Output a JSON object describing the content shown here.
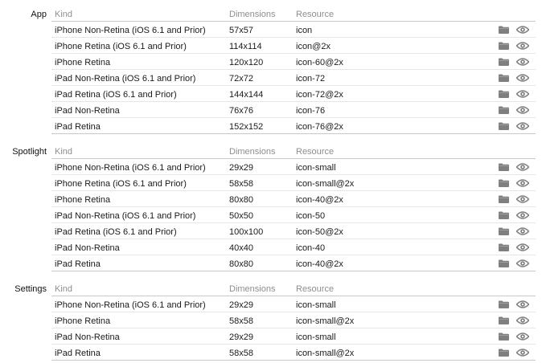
{
  "headers": {
    "kind": "Kind",
    "dimensions": "Dimensions",
    "resource": "Resource"
  },
  "icons": {
    "folder": "folder-icon",
    "eye": "eye-icon",
    "color": "#7f7f7f"
  },
  "sections": [
    {
      "label": "App",
      "rows": [
        {
          "kind": "iPhone Non-Retina (iOS 6.1 and Prior)",
          "dimensions": "57x57",
          "resource": "icon"
        },
        {
          "kind": "iPhone Retina (iOS 6.1 and Prior)",
          "dimensions": "114x114",
          "resource": "icon@2x"
        },
        {
          "kind": "iPhone Retina",
          "dimensions": "120x120",
          "resource": "icon-60@2x"
        },
        {
          "kind": "iPad Non-Retina (iOS 6.1 and Prior)",
          "dimensions": "72x72",
          "resource": "icon-72"
        },
        {
          "kind": "iPad Retina (iOS 6.1 and Prior)",
          "dimensions": "144x144",
          "resource": "icon-72@2x"
        },
        {
          "kind": "iPad Non-Retina",
          "dimensions": "76x76",
          "resource": "icon-76"
        },
        {
          "kind": "iPad Retina",
          "dimensions": "152x152",
          "resource": "icon-76@2x"
        }
      ]
    },
    {
      "label": "Spotlight",
      "rows": [
        {
          "kind": "iPhone Non-Retina (iOS 6.1 and Prior)",
          "dimensions": "29x29",
          "resource": "icon-small"
        },
        {
          "kind": "iPhone Retina (iOS 6.1 and Prior)",
          "dimensions": "58x58",
          "resource": "icon-small@2x"
        },
        {
          "kind": "iPhone Retina",
          "dimensions": "80x80",
          "resource": "icon-40@2x"
        },
        {
          "kind": "iPad Non-Retina (iOS 6.1 and Prior)",
          "dimensions": "50x50",
          "resource": "icon-50"
        },
        {
          "kind": "iPad Retina (iOS 6.1 and Prior)",
          "dimensions": "100x100",
          "resource": "icon-50@2x"
        },
        {
          "kind": "iPad Non-Retina",
          "dimensions": "40x40",
          "resource": "icon-40"
        },
        {
          "kind": "iPad Retina",
          "dimensions": "80x80",
          "resource": "icon-40@2x"
        }
      ]
    },
    {
      "label": "Settings",
      "rows": [
        {
          "kind": "iPhone Non-Retina (iOS 6.1 and Prior)",
          "dimensions": "29x29",
          "resource": "icon-small"
        },
        {
          "kind": "iPhone Retina",
          "dimensions": "58x58",
          "resource": "icon-small@2x"
        },
        {
          "kind": "iPad Non-Retina",
          "dimensions": "29x29",
          "resource": "icon-small"
        },
        {
          "kind": "iPad Retina",
          "dimensions": "58x58",
          "resource": "icon-small@2x"
        }
      ]
    }
  ]
}
